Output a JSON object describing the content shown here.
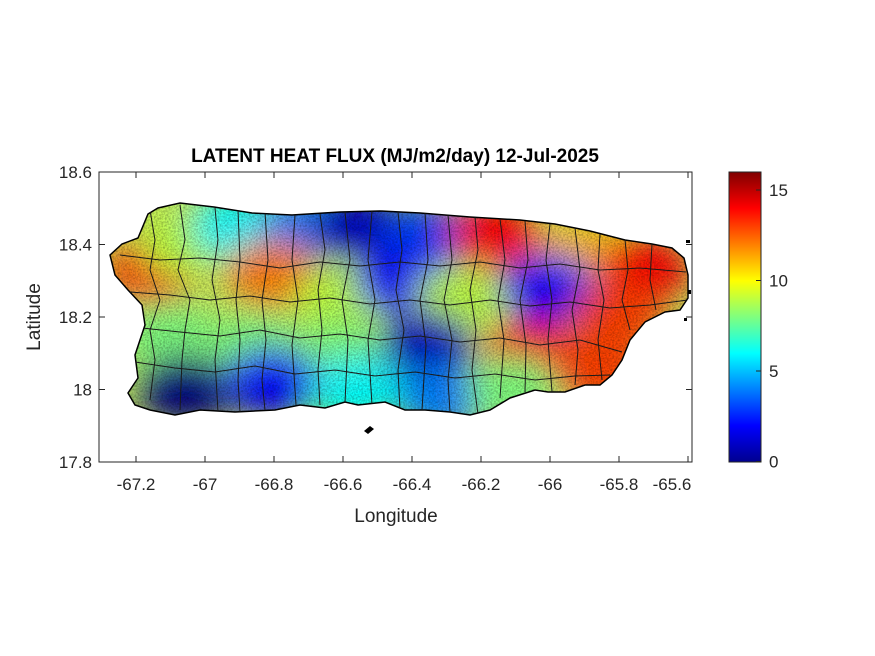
{
  "chart_data": {
    "type": "heatmap",
    "title": "LATENT HEAT FLUX (MJ/m2/day) 12-Jul-2025",
    "xlabel": "Longitude",
    "ylabel": "Latitude",
    "xlim": [
      -67.3,
      -65.58
    ],
    "ylim": [
      17.8,
      18.6
    ],
    "xticks": [
      "-67.2",
      "-67",
      "-66.8",
      "-66.6",
      "-66.4",
      "-66.2",
      "-66",
      "-65.8",
      "-65.6"
    ],
    "yticks": [
      "18.6",
      "18.4",
      "18.2",
      "18",
      "17.8"
    ],
    "colorbar": {
      "colormap": "jet",
      "range": [
        0,
        16
      ],
      "ticks": [
        "15",
        "10",
        "5",
        "0"
      ]
    },
    "regions": [
      {
        "lon": -67.15,
        "lat": 18.33,
        "value": 13
      },
      {
        "lon": -67.05,
        "lat": 18.4,
        "value": 9
      },
      {
        "lon": -66.9,
        "lat": 18.45,
        "value": 6
      },
      {
        "lon": -66.7,
        "lat": 18.45,
        "value": 4
      },
      {
        "lon": -66.55,
        "lat": 18.45,
        "value": 1
      },
      {
        "lon": -66.35,
        "lat": 18.42,
        "value": 3
      },
      {
        "lon": -66.15,
        "lat": 18.42,
        "value": 14
      },
      {
        "lon": -65.9,
        "lat": 18.38,
        "value": 11
      },
      {
        "lon": -65.72,
        "lat": 18.33,
        "value": 14
      },
      {
        "lon": -66.8,
        "lat": 18.32,
        "value": 12
      },
      {
        "lon": -66.6,
        "lat": 18.25,
        "value": 9
      },
      {
        "lon": -66.42,
        "lat": 18.3,
        "value": 2
      },
      {
        "lon": -66.25,
        "lat": 18.25,
        "value": 9
      },
      {
        "lon": -66.0,
        "lat": 18.28,
        "value": 2
      },
      {
        "lon": -65.8,
        "lat": 18.2,
        "value": 13
      },
      {
        "lon": -67.1,
        "lat": 18.15,
        "value": 8
      },
      {
        "lon": -66.85,
        "lat": 18.12,
        "value": 8
      },
      {
        "lon": -66.6,
        "lat": 18.1,
        "value": 8
      },
      {
        "lon": -66.35,
        "lat": 18.12,
        "value": 1
      },
      {
        "lon": -66.05,
        "lat": 18.1,
        "value": 14
      },
      {
        "lon": -65.85,
        "lat": 18.05,
        "value": 13
      },
      {
        "lon": -67.05,
        "lat": 18.0,
        "value": 0
      },
      {
        "lon": -66.8,
        "lat": 18.02,
        "value": 2
      },
      {
        "lon": -66.55,
        "lat": 18.0,
        "value": 6
      },
      {
        "lon": -66.3,
        "lat": 17.98,
        "value": 4
      },
      {
        "lon": -66.1,
        "lat": 18.0,
        "value": 8
      }
    ]
  }
}
